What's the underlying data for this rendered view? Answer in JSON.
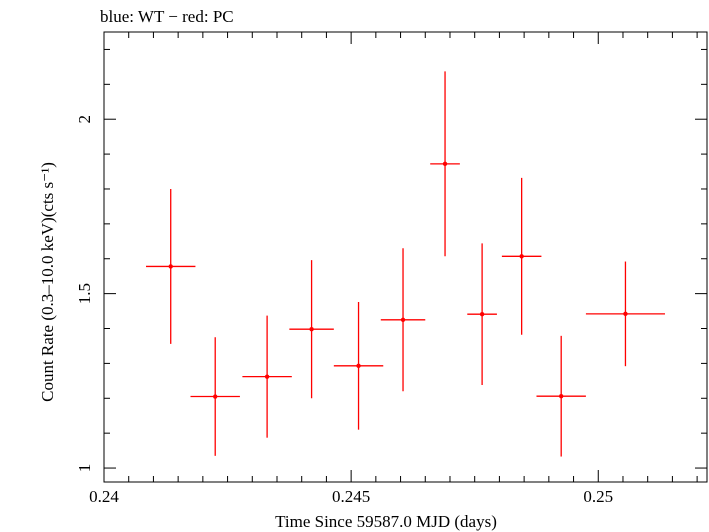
{
  "chart_data": {
    "type": "scatter",
    "title": "blue: WT − red: PC",
    "xlabel": "Time Since 59587.0 MJD (days)",
    "ylabel": "Count Rate (0.3–10.0 keV)(cts s⁻¹)",
    "xlim": [
      0.24,
      0.2522
    ],
    "ylim": [
      0.96,
      2.25
    ],
    "x_ticks": [
      0.24,
      0.245,
      0.25
    ],
    "x_tick_labels": [
      "0.24",
      "0.245",
      "0.25"
    ],
    "y_ticks": [
      1,
      1.5,
      2
    ],
    "y_tick_labels": [
      "1",
      "1.5",
      "2"
    ],
    "grid": false,
    "series": [
      {
        "name": "PC",
        "color": "#ff0000",
        "points": [
          {
            "x": 0.24135,
            "xerr": 0.0005,
            "y": 1.578,
            "yerr": 0.222
          },
          {
            "x": 0.24225,
            "xerr": 0.0005,
            "y": 1.205,
            "yerr": 0.17
          },
          {
            "x": 0.2433,
            "xerr": 0.0005,
            "y": 1.262,
            "yerr": 0.175
          },
          {
            "x": 0.2442,
            "xerr": 0.00045,
            "y": 1.398,
            "yerr": 0.198
          },
          {
            "x": 0.24515,
            "xerr": 0.0005,
            "y": 1.293,
            "yerr": 0.183
          },
          {
            "x": 0.24605,
            "xerr": 0.00045,
            "y": 1.425,
            "yerr": 0.205
          },
          {
            "x": 0.2469,
            "xerr": 0.0003,
            "y": 1.872,
            "yerr": 0.265
          },
          {
            "x": 0.24765,
            "xerr": 0.0003,
            "y": 1.441,
            "yerr": 0.203
          },
          {
            "x": 0.24845,
            "xerr": 0.0004,
            "y": 1.607,
            "yerr": 0.225
          },
          {
            "x": 0.24925,
            "xerr": 0.0005,
            "y": 1.206,
            "yerr": 0.173
          },
          {
            "x": 0.25055,
            "xerr": 0.0008,
            "y": 1.442,
            "yerr": 0.15
          }
        ]
      }
    ]
  }
}
